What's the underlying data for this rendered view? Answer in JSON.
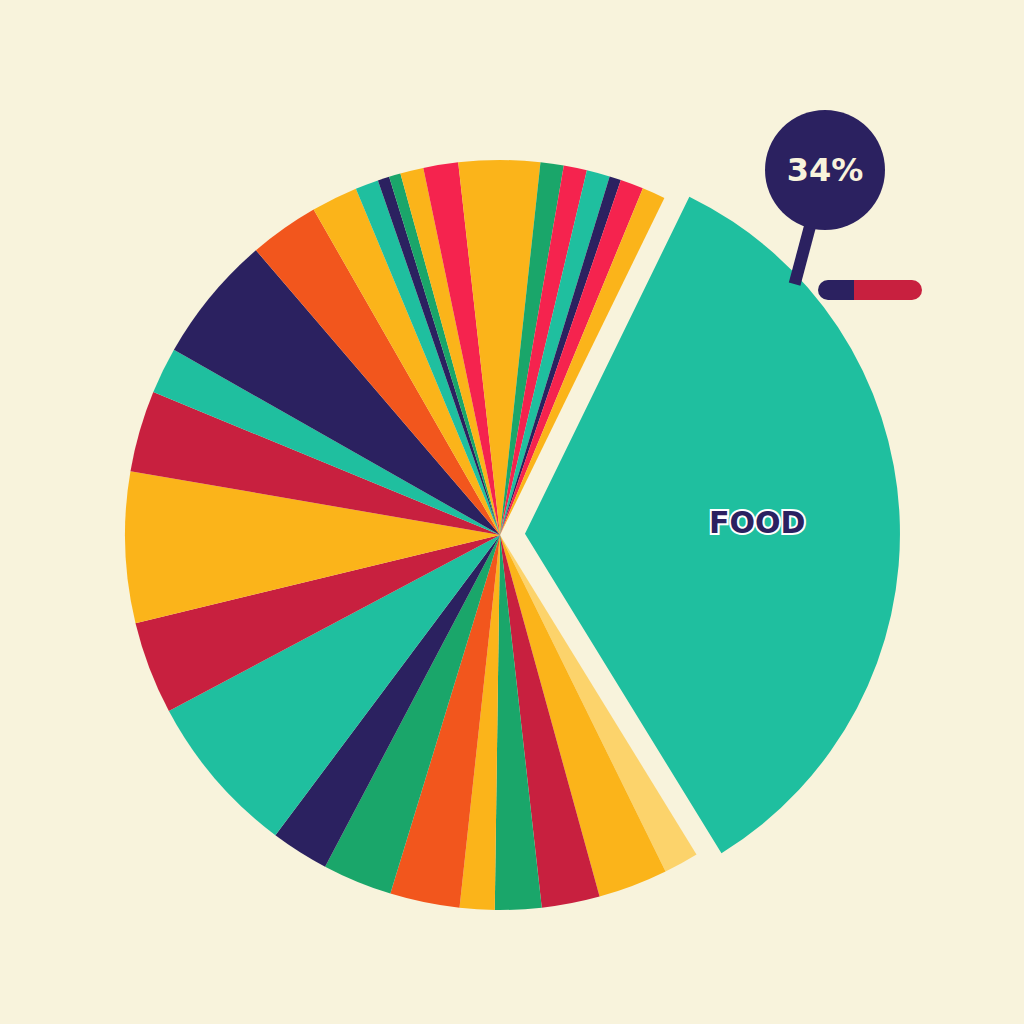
{
  "chart_data": {
    "type": "pie",
    "categories": [
      "FOOD",
      null,
      null,
      null,
      null,
      null,
      null,
      null,
      null,
      null,
      null,
      null,
      null,
      null,
      null,
      null,
      null,
      null,
      null,
      null,
      null,
      null,
      null,
      null,
      null,
      null,
      null,
      null,
      null
    ],
    "values": [
      34,
      1.5,
      3,
      2.5,
      2,
      1.5,
      3,
      3,
      2.5,
      7,
      4,
      6.5,
      3.5,
      2,
      5.5,
      3,
      2,
      1,
      0.5,
      0.5,
      1,
      1.5,
      3.5,
      1,
      1,
      1,
      0.5,
      1,
      1
    ],
    "colors": [
      "#1fbf9f",
      "#fcd36b",
      "#fbb41a",
      "#c8203f",
      "#1aa66a",
      "#fbb41a",
      "#f2561d",
      "#1aa66a",
      "#2b2160",
      "#1fbf9f",
      "#c8203f",
      "#fbb41a",
      "#c8203f",
      "#1fbf9f",
      "#2b2160",
      "#f2561d",
      "#fbb41a",
      "#1fbf9f",
      "#2b2160",
      "#1aa66a",
      "#fbb41a",
      "#f5234e",
      "#fbb41a",
      "#1aa66a",
      "#f5234e",
      "#1fbf9f",
      "#2b2160",
      "#f5234e",
      "#fbb41a"
    ],
    "value_labels": [
      "34%",
      null,
      null,
      null,
      null,
      null,
      null,
      null,
      null,
      null,
      null,
      null,
      null,
      null,
      null,
      null,
      null,
      null,
      null,
      null,
      null,
      null,
      null,
      null,
      null,
      null,
      null,
      null,
      null
    ],
    "data_labels": true
  }
}
